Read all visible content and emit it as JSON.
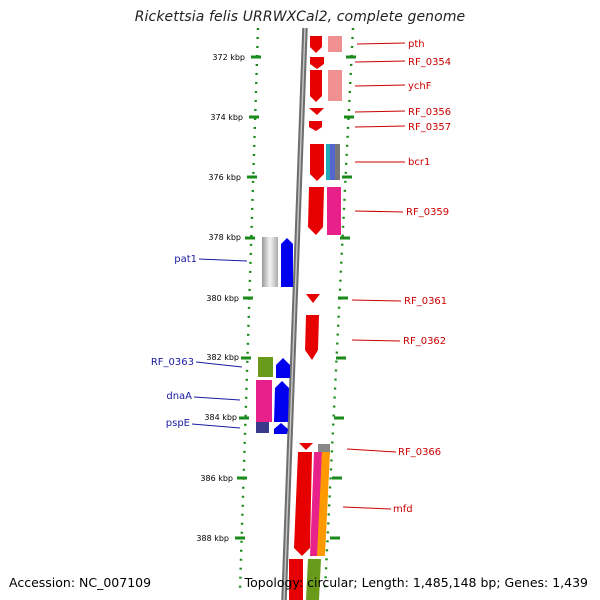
{
  "header": {
    "title": "Rickettsia felis URRWXCal2, complete genome"
  },
  "footer": {
    "accession": "Accession: NC_007109",
    "topology": "Topology: circular; Length: 1,485,148 bp; Genes: 1,439"
  },
  "ticks": [
    "372 kbp",
    "374 kbp",
    "376 kbp",
    "378 kbp",
    "380 kbp",
    "382 kbp",
    "384 kbp",
    "386 kbp",
    "388 kbp"
  ],
  "genes_right": [
    "pth",
    "RF_0354",
    "ychF",
    "RF_0356",
    "RF_0357",
    "bcr1",
    "RF_0359",
    "RF_0361",
    "RF_0362",
    "RF_0366",
    "mfd"
  ],
  "genes_left": [
    "pat1",
    "RF_0363",
    "dnaA",
    "pspE"
  ],
  "colors": {
    "forward_strand": "#e60000",
    "reverse_strand": "#0000ee",
    "right_label": "#cc0000",
    "left_label": "#1a1aa0",
    "ticks": "#1a8a1a",
    "backbone": "#808080",
    "cog_pink": "#e8208a",
    "cog_light_red": "#f09090",
    "cog_olive": "#6a9a1a",
    "cog_orange": "#ff9900",
    "cog_teal": "#22aabb",
    "cog_grey": "#888888"
  }
}
